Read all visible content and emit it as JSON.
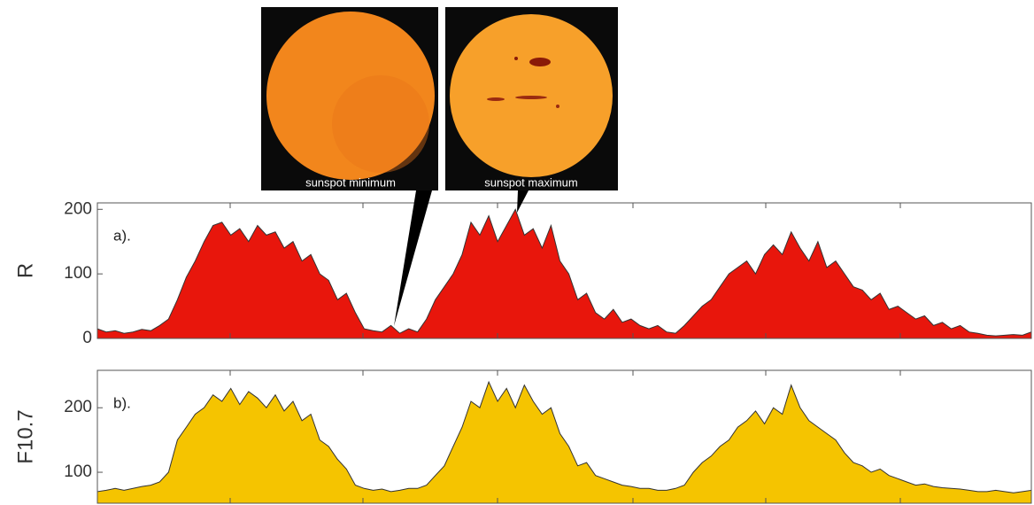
{
  "chart_data": [
    {
      "type": "area",
      "y_label": "R",
      "annotation": "a).",
      "color": "#e8160c",
      "ylim": [
        0,
        210
      ],
      "yticks": [
        0,
        100,
        200
      ],
      "values": [
        15,
        10,
        12,
        8,
        10,
        14,
        12,
        20,
        30,
        60,
        95,
        120,
        150,
        175,
        180,
        160,
        170,
        150,
        175,
        160,
        165,
        140,
        150,
        120,
        130,
        100,
        90,
        60,
        70,
        40,
        15,
        12,
        10,
        20,
        8,
        15,
        10,
        30,
        60,
        80,
        100,
        130,
        180,
        160,
        190,
        150,
        175,
        200,
        160,
        170,
        140,
        175,
        120,
        100,
        60,
        70,
        40,
        30,
        45,
        25,
        30,
        20,
        15,
        20,
        10,
        8,
        20,
        35,
        50,
        60,
        80,
        100,
        110,
        120,
        100,
        130,
        145,
        130,
        165,
        140,
        120,
        150,
        110,
        120,
        100,
        80,
        75,
        60,
        70,
        45,
        50,
        40,
        30,
        35,
        20,
        25,
        15,
        20,
        10,
        8,
        5,
        4,
        5,
        6,
        5,
        10
      ],
      "images": [
        "sunspot minimum",
        "sunspot maximum"
      ]
    },
    {
      "type": "area",
      "y_label": "F10.7",
      "annotation": "b).",
      "color": "#f5c400",
      "ylim": [
        52,
        258
      ],
      "yticks": [
        100,
        200
      ],
      "values": [
        70,
        72,
        75,
        72,
        75,
        78,
        80,
        85,
        100,
        150,
        170,
        190,
        200,
        220,
        210,
        230,
        205,
        225,
        215,
        200,
        220,
        195,
        210,
        180,
        190,
        150,
        140,
        120,
        105,
        80,
        75,
        72,
        74,
        70,
        72,
        75,
        75,
        80,
        95,
        110,
        140,
        170,
        210,
        200,
        240,
        210,
        230,
        200,
        235,
        210,
        190,
        200,
        160,
        140,
        110,
        115,
        95,
        90,
        85,
        80,
        78,
        75,
        75,
        72,
        72,
        75,
        80,
        100,
        115,
        125,
        140,
        150,
        170,
        180,
        195,
        175,
        200,
        190,
        235,
        200,
        180,
        170,
        160,
        150,
        130,
        115,
        110,
        100,
        105,
        95,
        90,
        85,
        80,
        82,
        78,
        76,
        75,
        74,
        72,
        70,
        70,
        72,
        70,
        68,
        70,
        72
      ]
    }
  ]
}
